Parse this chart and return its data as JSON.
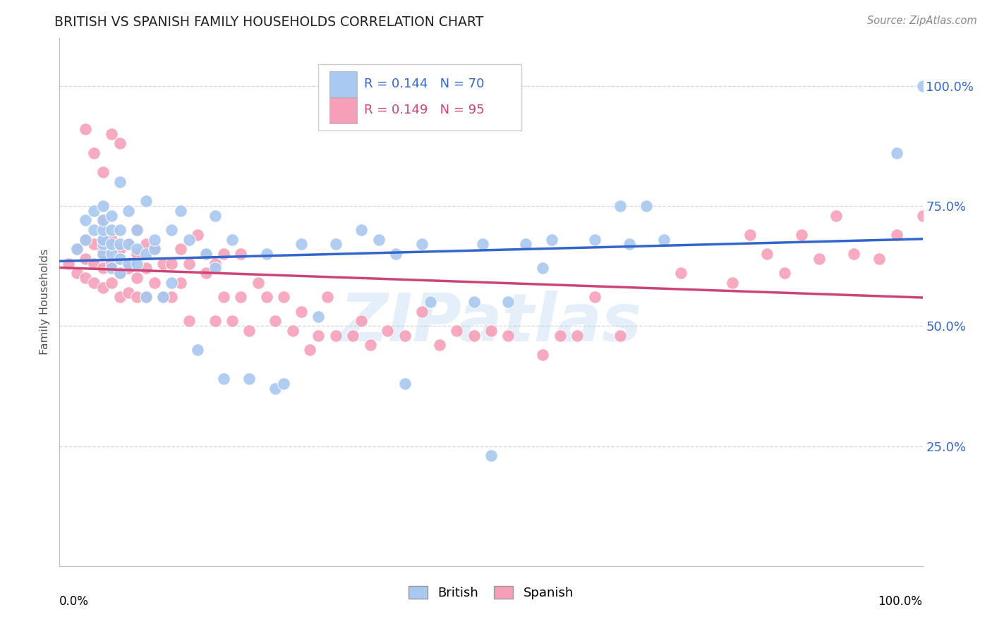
{
  "title": "BRITISH VS SPANISH FAMILY HOUSEHOLDS CORRELATION CHART",
  "source": "Source: ZipAtlas.com",
  "ylabel": "Family Households",
  "legend_british": "British",
  "legend_spanish": "Spanish",
  "british_R": "0.144",
  "british_N": "70",
  "spanish_R": "0.149",
  "spanish_N": "95",
  "british_color": "#a8c8f0",
  "spanish_color": "#f5a0b8",
  "british_line_color": "#3366cc",
  "spanish_line_color": "#cc4477",
  "watermark_text": "ZIPatlas",
  "watermark_color": "#aaccee",
  "xlim": [
    0.0,
    1.0
  ],
  "ylim": [
    0.0,
    1.1
  ],
  "ytick_positions": [
    0.25,
    0.5,
    0.75,
    1.0
  ],
  "ytick_labels": [
    "25.0%",
    "50.0%",
    "75.0%",
    "100.0%"
  ],
  "xtick_labels": [
    "0.0%",
    "100.0%"
  ],
  "background_color": "#ffffff",
  "grid_color": "#cccccc",
  "title_color": "#222222",
  "source_color": "#888888",
  "axis_label_color": "#555555",
  "right_tick_color": "#3366cc",
  "british_x": [
    0.02,
    0.03,
    0.03,
    0.04,
    0.04,
    0.05,
    0.05,
    0.05,
    0.05,
    0.05,
    0.05,
    0.06,
    0.06,
    0.06,
    0.06,
    0.06,
    0.07,
    0.07,
    0.07,
    0.07,
    0.07,
    0.08,
    0.08,
    0.08,
    0.09,
    0.09,
    0.09,
    0.1,
    0.1,
    0.1,
    0.11,
    0.11,
    0.12,
    0.13,
    0.13,
    0.14,
    0.15,
    0.16,
    0.17,
    0.18,
    0.18,
    0.19,
    0.2,
    0.22,
    0.24,
    0.25,
    0.26,
    0.28,
    0.3,
    0.32,
    0.35,
    0.37,
    0.39,
    0.4,
    0.42,
    0.43,
    0.48,
    0.49,
    0.5,
    0.52,
    0.54,
    0.56,
    0.57,
    0.62,
    0.65,
    0.66,
    0.68,
    0.7,
    0.97,
    1.0
  ],
  "british_y": [
    0.66,
    0.72,
    0.68,
    0.7,
    0.74,
    0.65,
    0.67,
    0.68,
    0.7,
    0.72,
    0.75,
    0.62,
    0.65,
    0.67,
    0.7,
    0.73,
    0.61,
    0.64,
    0.67,
    0.7,
    0.8,
    0.63,
    0.67,
    0.74,
    0.63,
    0.66,
    0.7,
    0.56,
    0.65,
    0.76,
    0.66,
    0.68,
    0.56,
    0.59,
    0.7,
    0.74,
    0.68,
    0.45,
    0.65,
    0.62,
    0.73,
    0.39,
    0.68,
    0.39,
    0.65,
    0.37,
    0.38,
    0.67,
    0.52,
    0.67,
    0.7,
    0.68,
    0.65,
    0.38,
    0.67,
    0.55,
    0.55,
    0.67,
    0.23,
    0.55,
    0.67,
    0.62,
    0.68,
    0.68,
    0.75,
    0.67,
    0.75,
    0.68,
    0.86,
    1.0
  ],
  "spanish_x": [
    0.01,
    0.02,
    0.02,
    0.03,
    0.03,
    0.03,
    0.04,
    0.04,
    0.04,
    0.05,
    0.05,
    0.05,
    0.05,
    0.05,
    0.05,
    0.06,
    0.06,
    0.06,
    0.07,
    0.07,
    0.07,
    0.08,
    0.08,
    0.08,
    0.09,
    0.09,
    0.09,
    0.09,
    0.1,
    0.1,
    0.1,
    0.11,
    0.11,
    0.12,
    0.12,
    0.13,
    0.13,
    0.14,
    0.14,
    0.15,
    0.15,
    0.16,
    0.17,
    0.17,
    0.18,
    0.18,
    0.19,
    0.19,
    0.2,
    0.21,
    0.21,
    0.22,
    0.23,
    0.24,
    0.25,
    0.26,
    0.27,
    0.28,
    0.29,
    0.3,
    0.31,
    0.32,
    0.34,
    0.35,
    0.36,
    0.38,
    0.4,
    0.42,
    0.44,
    0.46,
    0.48,
    0.5,
    0.52,
    0.56,
    0.58,
    0.6,
    0.62,
    0.65,
    0.72,
    0.78,
    0.8,
    0.82,
    0.84,
    0.86,
    0.88,
    0.9,
    0.92,
    0.95,
    0.97,
    1.0,
    0.03,
    0.04,
    0.05,
    0.06,
    0.07
  ],
  "spanish_y": [
    0.63,
    0.61,
    0.66,
    0.6,
    0.64,
    0.68,
    0.59,
    0.63,
    0.67,
    0.58,
    0.62,
    0.65,
    0.68,
    0.72,
    0.66,
    0.59,
    0.63,
    0.68,
    0.56,
    0.61,
    0.66,
    0.57,
    0.62,
    0.67,
    0.56,
    0.6,
    0.65,
    0.7,
    0.56,
    0.62,
    0.67,
    0.59,
    0.66,
    0.56,
    0.63,
    0.56,
    0.63,
    0.59,
    0.66,
    0.51,
    0.63,
    0.69,
    0.61,
    0.65,
    0.51,
    0.63,
    0.56,
    0.65,
    0.51,
    0.56,
    0.65,
    0.49,
    0.59,
    0.56,
    0.51,
    0.56,
    0.49,
    0.53,
    0.45,
    0.48,
    0.56,
    0.48,
    0.48,
    0.51,
    0.46,
    0.49,
    0.48,
    0.53,
    0.46,
    0.49,
    0.48,
    0.49,
    0.48,
    0.44,
    0.48,
    0.48,
    0.56,
    0.48,
    0.61,
    0.59,
    0.69,
    0.65,
    0.61,
    0.69,
    0.64,
    0.73,
    0.65,
    0.64,
    0.69,
    0.73,
    0.91,
    0.86,
    0.82,
    0.9,
    0.88
  ]
}
